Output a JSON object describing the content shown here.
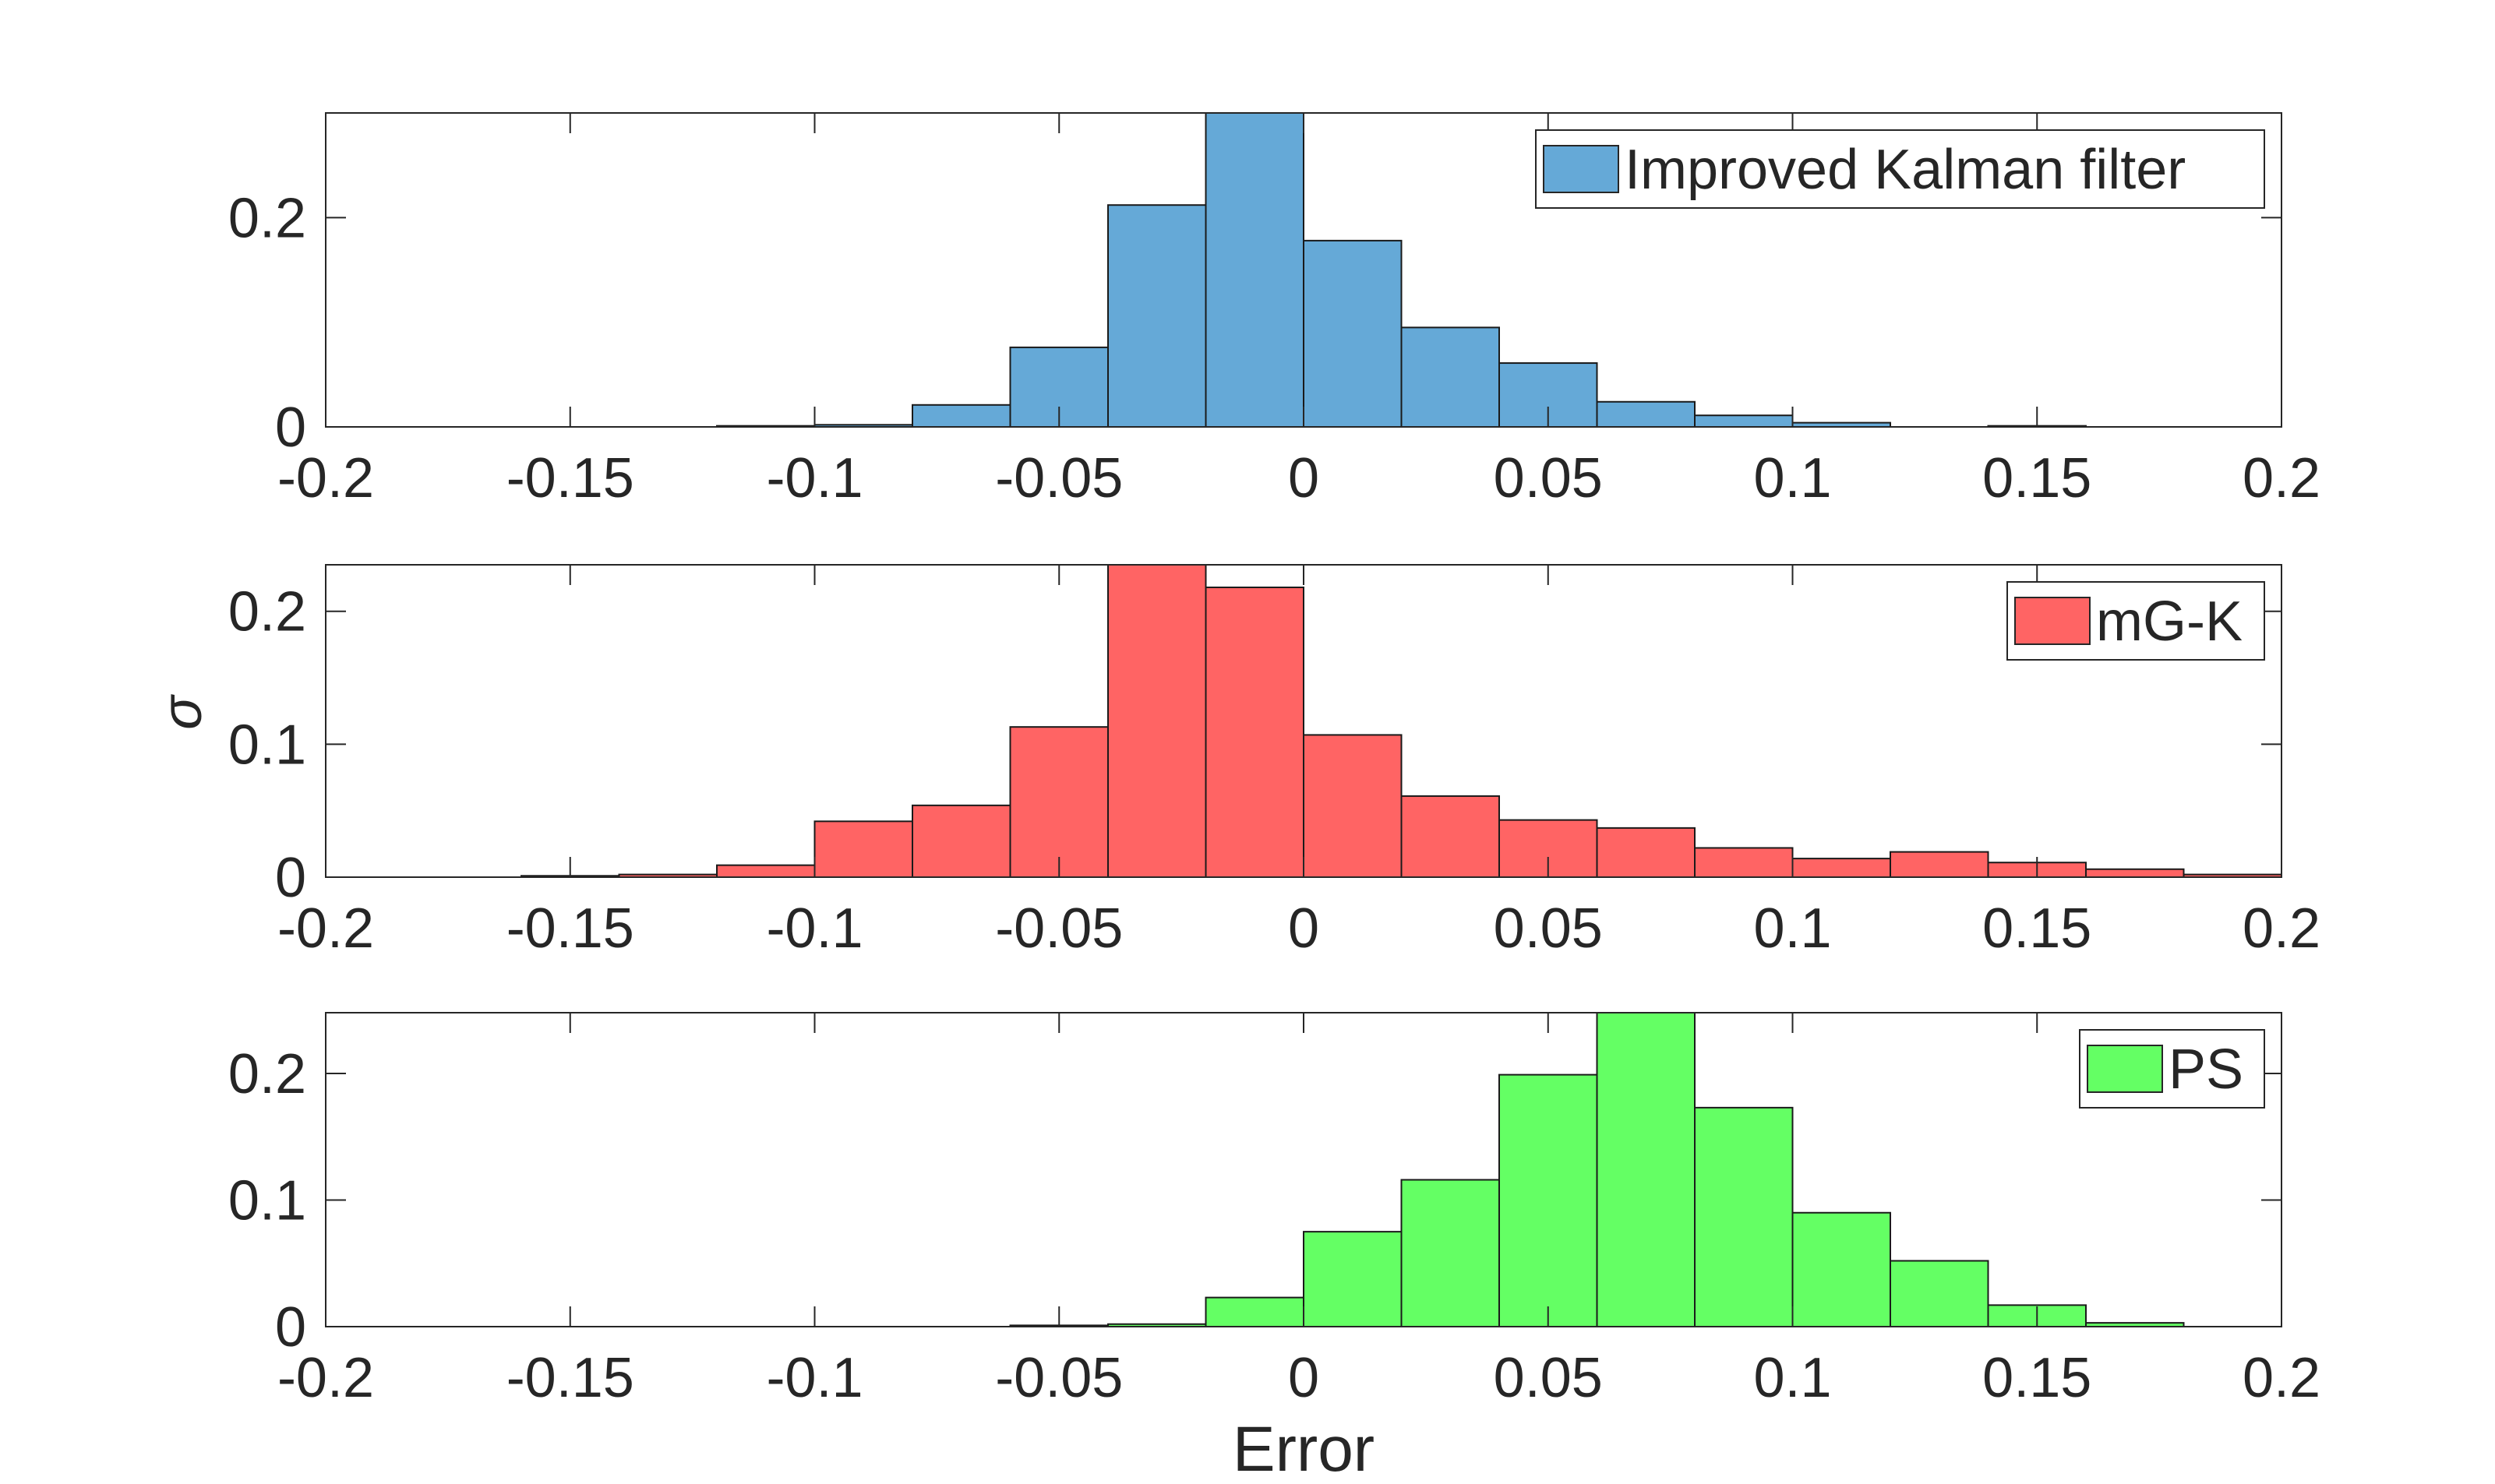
{
  "chart_data": {
    "type": "histogram",
    "xlabel": "Error",
    "ylabel": "σ",
    "bin_edges": [
      -0.2,
      -0.18,
      -0.16,
      -0.14,
      -0.12,
      -0.1,
      -0.08,
      -0.06,
      -0.04,
      -0.02,
      0,
      0.02,
      0.04,
      0.06,
      0.08,
      0.1,
      0.12,
      0.14,
      0.16,
      0.18,
      0.2
    ],
    "xlim": [
      -0.2,
      0.2
    ],
    "xticks": [
      "-0.2",
      "-0.15",
      "-0.1",
      "-0.05",
      "0",
      "0.05",
      "0.1",
      "0.15",
      "0.2"
    ],
    "xtick_values": [
      -0.2,
      -0.15,
      -0.1,
      -0.05,
      0,
      0.05,
      0.1,
      0.15,
      0.2
    ],
    "panels": [
      {
        "name": "Improved Kalman filter",
        "color": "#65A9D7",
        "legend_location": "top-right",
        "ylim": [
          0,
          0.3
        ],
        "yticks": [
          "0",
          "0.2"
        ],
        "ytick_values": [
          0,
          0.2
        ],
        "values": [
          0,
          0,
          0,
          0,
          0.001,
          0.002,
          0.021,
          0.076,
          0.212,
          0.3,
          0.178,
          0.095,
          0.061,
          0.024,
          0.011,
          0.004,
          0,
          0.001,
          0,
          0
        ]
      },
      {
        "name": "mG-K",
        "color": "#FF6464",
        "legend_location": "top-right",
        "ylim": [
          0,
          0.235
        ],
        "yticks": [
          "0",
          "0.1",
          "0.2"
        ],
        "ytick_values": [
          0,
          0.1,
          0.2
        ],
        "values": [
          0,
          0,
          0.001,
          0.002,
          0.009,
          0.042,
          0.054,
          0.113,
          0.235,
          0.218,
          0.107,
          0.061,
          0.043,
          0.037,
          0.022,
          0.014,
          0.019,
          0.011,
          0.006,
          0.002
        ]
      },
      {
        "name": "PS",
        "color": "#64FF64",
        "legend_location": "top-right",
        "ylim": [
          0,
          0.248
        ],
        "yticks": [
          "0",
          "0.1",
          "0.2"
        ],
        "ytick_values": [
          0,
          0.1,
          0.2
        ],
        "values": [
          0,
          0,
          0,
          0,
          0,
          0,
          0,
          0.001,
          0.002,
          0.023,
          0.075,
          0.116,
          0.199,
          0.248,
          0.173,
          0.09,
          0.052,
          0.017,
          0.003,
          0
        ]
      }
    ]
  }
}
